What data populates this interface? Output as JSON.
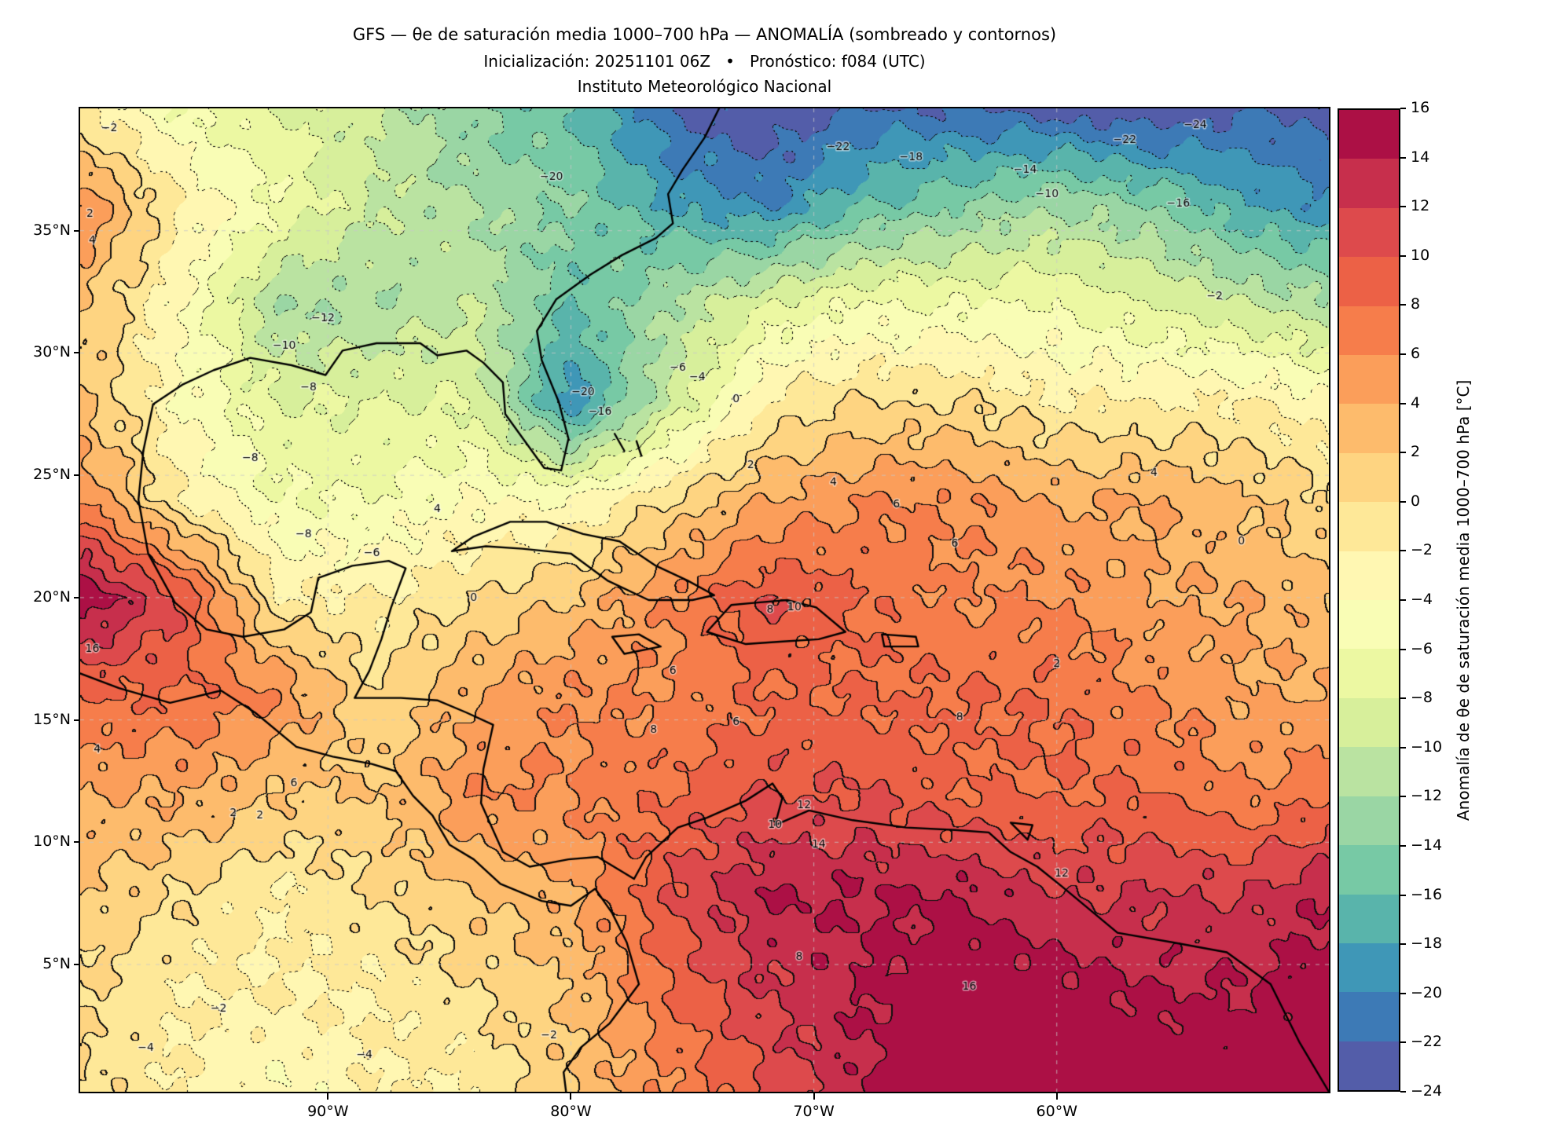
{
  "title": {
    "line1": "GFS — θe de saturación media 1000–700 hPa — ANOMALÍA (sombreado y contornos)",
    "line2": "Inicialización: 20251101 06Z   •   Pronóstico: f084 (UTC)",
    "line3": "Instituto Meteorológico Nacional"
  },
  "chart_data": {
    "type": "heatmap",
    "subtype": "filled-contour-anomaly-map",
    "contour_interval": 2,
    "positive_contour_style": "solid",
    "negative_contour_style": "dotted",
    "projection": {
      "lon_min": -100.2,
      "lon_max": -48.8,
      "lat_min": -0.2,
      "lat_max": 40.0
    },
    "x_ticks": [
      {
        "lon": -90,
        "label": "90°W"
      },
      {
        "lon": -80,
        "label": "80°W"
      },
      {
        "lon": -70,
        "label": "70°W"
      },
      {
        "lon": -60,
        "label": "60°W"
      }
    ],
    "y_ticks": [
      {
        "lat": 35,
        "label": "35°N"
      },
      {
        "lat": 30,
        "label": "30°N"
      },
      {
        "lat": 25,
        "label": "25°N"
      },
      {
        "lat": 20,
        "label": "20°N"
      },
      {
        "lat": 15,
        "label": "15°N"
      },
      {
        "lat": 10,
        "label": "10°N"
      },
      {
        "lat": 5,
        "label": "5°N"
      }
    ],
    "colorbar": {
      "label": "Anomalía de θe de saturación media 1000–700 hPa [°C]",
      "min": -24,
      "max": 16,
      "step": 2,
      "colors": [
        "#5e4fa2",
        "#3288bd",
        "#66c2a5",
        "#abdda4",
        "#e6f598",
        "#ffffbf",
        "#fee08b",
        "#fdae61",
        "#f46d43",
        "#d53e4f",
        "#9e0142"
      ]
    },
    "grid": {
      "lons": [
        -100,
        -96,
        -92,
        -88,
        -84,
        -80,
        -76,
        -72,
        -68,
        -64,
        -60,
        -56,
        -52,
        -48
      ],
      "lats": [
        40,
        36,
        32,
        28,
        24,
        20,
        16,
        12,
        8,
        4,
        0
      ],
      "anomaly_c": [
        [
          -2,
          -6,
          -8,
          -10,
          -14,
          -16,
          -22,
          -24,
          -22,
          -22,
          -23,
          -24,
          -22,
          -23
        ],
        [
          6,
          -2,
          -6,
          -10,
          -12,
          -14,
          -18,
          -20,
          -16,
          -14,
          -12,
          -14,
          -18,
          -20
        ],
        [
          2,
          -4,
          -12,
          -12,
          -10,
          -16,
          -12,
          -8,
          -6,
          -6,
          -6,
          -8,
          -10,
          -12
        ],
        [
          2,
          -4,
          -8,
          -8,
          -8,
          -20,
          -10,
          -2,
          0,
          0,
          -2,
          -2,
          -2,
          -4
        ],
        [
          6,
          -2,
          -6,
          -6,
          -4,
          -4,
          0,
          4,
          6,
          6,
          4,
          4,
          2,
          0
        ],
        [
          16,
          10,
          -2,
          -2,
          0,
          2,
          6,
          10,
          8,
          6,
          6,
          4,
          4,
          2
        ],
        [
          8,
          8,
          6,
          0,
          4,
          6,
          6,
          8,
          8,
          8,
          8,
          6,
          4,
          4
        ],
        [
          4,
          4,
          2,
          2,
          6,
          6,
          8,
          10,
          10,
          8,
          8,
          8,
          6,
          8
        ],
        [
          2,
          0,
          -2,
          0,
          2,
          4,
          10,
          14,
          14,
          14,
          12,
          12,
          12,
          14
        ],
        [
          0,
          -2,
          -2,
          -2,
          0,
          2,
          8,
          12,
          14,
          16,
          15,
          14,
          14,
          16
        ],
        [
          0,
          -2,
          -4,
          -2,
          -2,
          2,
          6,
          10,
          14,
          16,
          16,
          16,
          16,
          16
        ]
      ]
    },
    "contour_labels": [
      {
        "t": "-2",
        "lon": -99.0,
        "lat": 39.2
      },
      {
        "t": "-24",
        "lon": -54.3,
        "lat": 39.3
      },
      {
        "t": "-22",
        "lon": -57.2,
        "lat": 38.7
      },
      {
        "t": "-22",
        "lon": -69.0,
        "lat": 38.4
      },
      {
        "t": "-18",
        "lon": -66.0,
        "lat": 38.0
      },
      {
        "t": "-20",
        "lon": -80.8,
        "lat": 37.2
      },
      {
        "t": "-14",
        "lon": -61.3,
        "lat": 37.5
      },
      {
        "t": "-10",
        "lon": -60.4,
        "lat": 36.5
      },
      {
        "t": "-16",
        "lon": -55.0,
        "lat": 36.1
      },
      {
        "t": "2",
        "lon": -99.8,
        "lat": 35.7
      },
      {
        "t": "4",
        "lon": -99.7,
        "lat": 34.6
      },
      {
        "t": "-12",
        "lon": -90.2,
        "lat": 31.4
      },
      {
        "t": "-10",
        "lon": -91.8,
        "lat": 30.3
      },
      {
        "t": "-8",
        "lon": -90.8,
        "lat": 28.6
      },
      {
        "t": "-20",
        "lon": -79.5,
        "lat": 28.4
      },
      {
        "t": "-16",
        "lon": -78.8,
        "lat": 27.6
      },
      {
        "t": "-6",
        "lon": -75.6,
        "lat": 29.4
      },
      {
        "t": "-4",
        "lon": -74.8,
        "lat": 29.0
      },
      {
        "t": "0",
        "lon": -73.2,
        "lat": 28.1
      },
      {
        "t": "-2",
        "lon": -53.5,
        "lat": 32.3
      },
      {
        "t": "2",
        "lon": -72.6,
        "lat": 25.4
      },
      {
        "t": "4",
        "lon": -69.2,
        "lat": 24.7
      },
      {
        "t": "6",
        "lon": -66.6,
        "lat": 23.8
      },
      {
        "t": "4",
        "lon": -56.0,
        "lat": 25.1
      },
      {
        "t": "0",
        "lon": -52.4,
        "lat": 22.3
      },
      {
        "t": "-8",
        "lon": -93.2,
        "lat": 25.7
      },
      {
        "t": "-8",
        "lon": -91.0,
        "lat": 22.6
      },
      {
        "t": "-6",
        "lon": -88.2,
        "lat": 21.8
      },
      {
        "t": "0",
        "lon": -84.0,
        "lat": 20.0
      },
      {
        "t": "4",
        "lon": -85.5,
        "lat": 23.6
      },
      {
        "t": "8",
        "lon": -71.8,
        "lat": 19.5
      },
      {
        "t": "10",
        "lon": -70.8,
        "lat": 19.6
      },
      {
        "t": "6",
        "lon": -75.8,
        "lat": 17.0
      },
      {
        "t": "8",
        "lon": -76.6,
        "lat": 14.6
      },
      {
        "t": "6",
        "lon": -73.2,
        "lat": 14.9
      },
      {
        "t": "8",
        "lon": -64.0,
        "lat": 15.1
      },
      {
        "t": "6",
        "lon": -64.2,
        "lat": 22.2
      },
      {
        "t": "2",
        "lon": -60.0,
        "lat": 17.3
      },
      {
        "t": "12",
        "lon": -70.4,
        "lat": 11.5
      },
      {
        "t": "10",
        "lon": -71.6,
        "lat": 10.7
      },
      {
        "t": "14",
        "lon": -69.8,
        "lat": 9.9
      },
      {
        "t": "8",
        "lon": -70.6,
        "lat": 5.3
      },
      {
        "t": "16",
        "lon": -63.6,
        "lat": 4.1
      },
      {
        "t": "12",
        "lon": -59.8,
        "lat": 8.7
      },
      {
        "t": "16",
        "lon": -99.7,
        "lat": 17.9
      },
      {
        "t": "4",
        "lon": -99.5,
        "lat": 13.8
      },
      {
        "t": "6",
        "lon": -91.4,
        "lat": 12.4
      },
      {
        "t": "2",
        "lon": -93.9,
        "lat": 11.2
      },
      {
        "t": "2",
        "lon": -92.8,
        "lat": 11.1
      },
      {
        "t": "-2",
        "lon": -94.5,
        "lat": 3.2
      },
      {
        "t": "-4",
        "lon": -97.5,
        "lat": 1.6
      },
      {
        "t": "-4",
        "lon": -88.5,
        "lat": 1.3
      },
      {
        "t": "-2",
        "lon": -80.9,
        "lat": 2.1
      }
    ],
    "coastlines": [
      [
        [
          -97.6,
          26.0
        ],
        [
          -97.2,
          27.9
        ],
        [
          -96.0,
          28.7
        ],
        [
          -94.7,
          29.3
        ],
        [
          -93.2,
          29.8
        ],
        [
          -91.5,
          29.5
        ],
        [
          -90.1,
          29.1
        ],
        [
          -89.4,
          30.1
        ],
        [
          -88.0,
          30.4
        ],
        [
          -86.2,
          30.4
        ],
        [
          -85.5,
          29.9
        ],
        [
          -84.3,
          30.1
        ],
        [
          -83.6,
          29.6
        ],
        [
          -82.8,
          28.8
        ],
        [
          -82.7,
          27.5
        ],
        [
          -81.9,
          26.4
        ],
        [
          -81.1,
          25.3
        ],
        [
          -80.4,
          25.2
        ],
        [
          -80.1,
          26.5
        ],
        [
          -80.5,
          28.0
        ],
        [
          -81.2,
          29.7
        ],
        [
          -81.4,
          30.9
        ],
        [
          -80.6,
          32.2
        ],
        [
          -79.2,
          33.2
        ],
        [
          -77.9,
          34.0
        ],
        [
          -76.5,
          34.7
        ],
        [
          -75.8,
          35.3
        ],
        [
          -76.0,
          36.5
        ],
        [
          -75.4,
          37.5
        ],
        [
          -74.5,
          38.8
        ],
        [
          -73.9,
          40.0
        ]
      ],
      [
        [
          -97.6,
          26.0
        ],
        [
          -97.8,
          24.0
        ],
        [
          -97.4,
          21.8
        ],
        [
          -96.3,
          19.8
        ],
        [
          -95.0,
          18.7
        ],
        [
          -93.5,
          18.4
        ],
        [
          -91.8,
          18.7
        ],
        [
          -90.7,
          19.4
        ],
        [
          -90.4,
          20.8
        ],
        [
          -89.0,
          21.3
        ],
        [
          -87.5,
          21.5
        ],
        [
          -86.8,
          21.2
        ],
        [
          -87.4,
          19.6
        ],
        [
          -87.8,
          18.3
        ],
        [
          -88.3,
          17.0
        ],
        [
          -88.9,
          15.9
        ],
        [
          -87.0,
          15.9
        ],
        [
          -85.5,
          15.8
        ],
        [
          -84.3,
          15.3
        ],
        [
          -83.2,
          14.8
        ],
        [
          -83.6,
          13.0
        ],
        [
          -83.7,
          11.6
        ],
        [
          -82.8,
          9.6
        ],
        [
          -81.7,
          9.0
        ],
        [
          -80.1,
          9.3
        ],
        [
          -78.9,
          9.4
        ],
        [
          -77.4,
          8.5
        ],
        [
          -76.9,
          9.4
        ],
        [
          -75.6,
          10.6
        ],
        [
          -74.4,
          11.0
        ],
        [
          -72.8,
          11.7
        ],
        [
          -71.7,
          12.4
        ],
        [
          -71.3,
          11.8
        ],
        [
          -71.6,
          10.7
        ],
        [
          -70.2,
          11.3
        ],
        [
          -68.4,
          10.9
        ],
        [
          -66.2,
          10.6
        ],
        [
          -64.2,
          10.5
        ],
        [
          -62.8,
          10.4
        ],
        [
          -61.9,
          9.6
        ],
        [
          -60.8,
          9.0
        ],
        [
          -59.8,
          8.2
        ],
        [
          -57.5,
          6.3
        ],
        [
          -55.2,
          5.9
        ],
        [
          -53.0,
          5.5
        ],
        [
          -51.2,
          4.2
        ],
        [
          -50.0,
          1.8
        ],
        [
          -48.8,
          -0.2
        ]
      ],
      [
        [
          -100.2,
          16.9
        ],
        [
          -98.6,
          16.3
        ],
        [
          -96.5,
          15.7
        ],
        [
          -94.4,
          16.2
        ],
        [
          -93.0,
          15.3
        ],
        [
          -91.3,
          13.9
        ],
        [
          -89.8,
          13.5
        ],
        [
          -88.2,
          13.2
        ],
        [
          -87.2,
          12.9
        ],
        [
          -86.5,
          11.9
        ],
        [
          -85.7,
          11.1
        ],
        [
          -85.0,
          9.9
        ],
        [
          -84.0,
          9.3
        ],
        [
          -82.9,
          8.3
        ],
        [
          -81.2,
          7.6
        ],
        [
          -80.0,
          7.4
        ],
        [
          -79.0,
          8.1
        ],
        [
          -78.3,
          7.1
        ],
        [
          -77.7,
          5.9
        ],
        [
          -77.2,
          4.2
        ],
        [
          -78.4,
          2.6
        ],
        [
          -79.6,
          1.6
        ],
        [
          -80.3,
          0.6
        ],
        [
          -80.2,
          -0.2
        ]
      ],
      [
        [
          -84.9,
          21.9
        ],
        [
          -84.0,
          22.5
        ],
        [
          -82.5,
          23.1
        ],
        [
          -81.0,
          23.1
        ],
        [
          -79.5,
          22.6
        ],
        [
          -78.0,
          22.3
        ],
        [
          -76.5,
          21.3
        ],
        [
          -75.2,
          20.7
        ],
        [
          -74.1,
          20.1
        ],
        [
          -75.0,
          19.9
        ],
        [
          -76.8,
          19.9
        ],
        [
          -78.5,
          20.7
        ],
        [
          -80.0,
          21.8
        ],
        [
          -82.0,
          22.0
        ],
        [
          -83.5,
          22.1
        ],
        [
          -84.9,
          21.9
        ]
      ],
      [
        [
          -74.4,
          18.6
        ],
        [
          -73.4,
          19.7
        ],
        [
          -72.3,
          19.8
        ],
        [
          -71.1,
          19.9
        ],
        [
          -69.9,
          19.6
        ],
        [
          -68.7,
          18.6
        ],
        [
          -69.8,
          18.3
        ],
        [
          -71.4,
          18.2
        ],
        [
          -72.8,
          18.1
        ],
        [
          -74.4,
          18.6
        ]
      ],
      [
        [
          -78.3,
          18.4
        ],
        [
          -77.2,
          18.5
        ],
        [
          -76.3,
          18.0
        ],
        [
          -77.8,
          17.7
        ],
        [
          -78.3,
          18.4
        ]
      ],
      [
        [
          -67.2,
          18.5
        ],
        [
          -65.8,
          18.4
        ],
        [
          -65.7,
          18.0
        ],
        [
          -67.1,
          18.0
        ],
        [
          -67.2,
          18.5
        ]
      ],
      [
        [
          -78.2,
          26.7
        ],
        [
          -77.8,
          26.0
        ]
      ],
      [
        [
          -77.3,
          26.4
        ],
        [
          -77.1,
          25.8
        ]
      ],
      [
        [
          -61.9,
          10.8
        ],
        [
          -61.0,
          10.7
        ],
        [
          -61.2,
          10.1
        ],
        [
          -61.9,
          10.8
        ]
      ]
    ]
  }
}
